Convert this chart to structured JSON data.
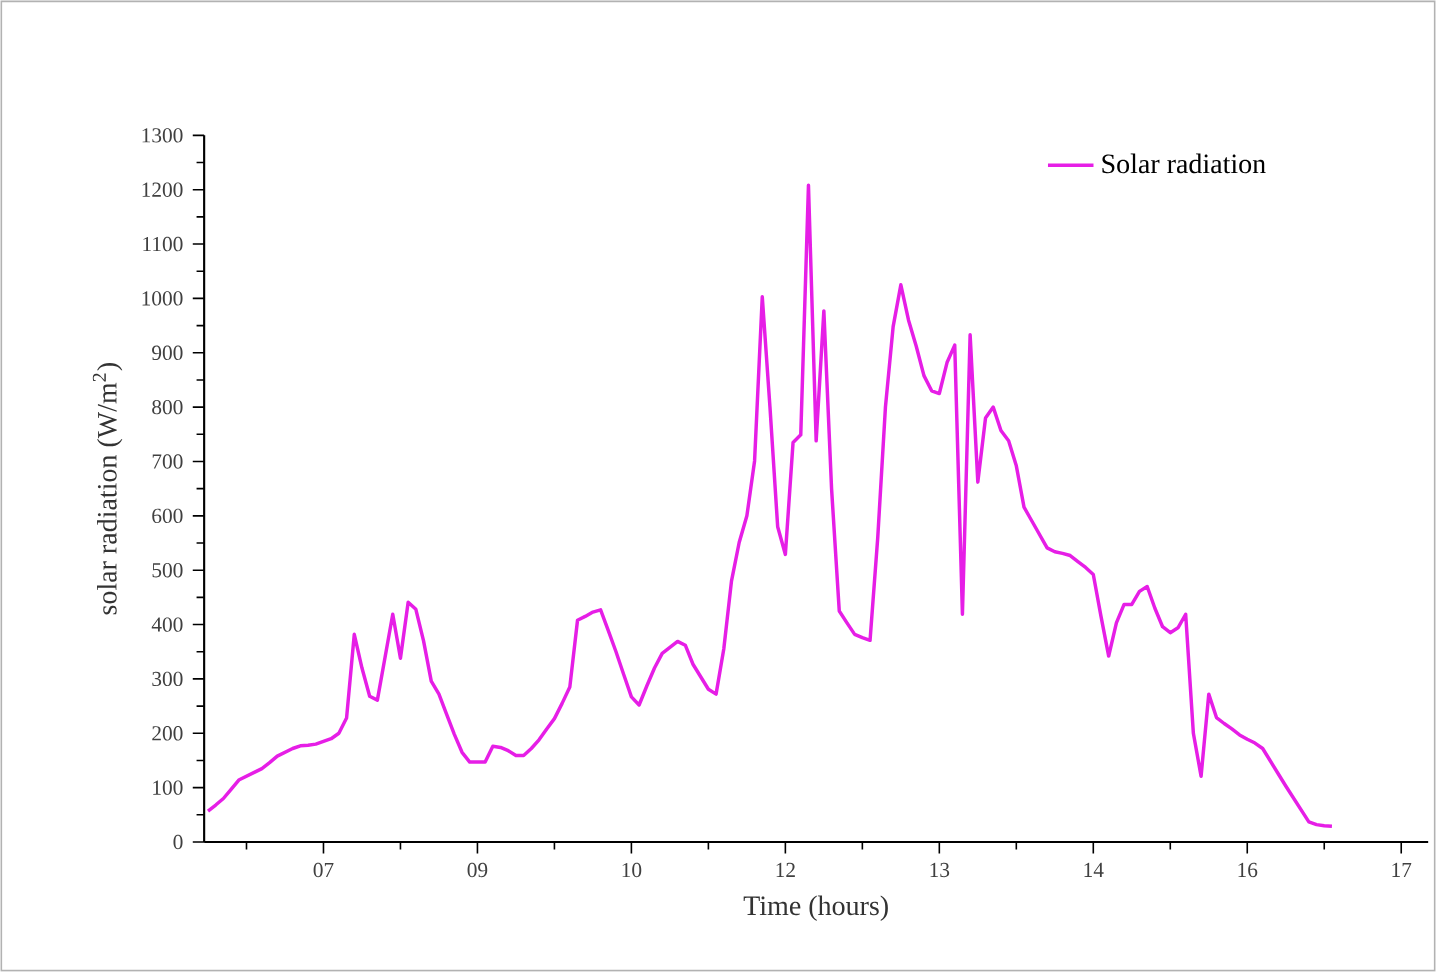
{
  "chart_data": {
    "type": "line",
    "xlabel": "Time (hours)",
    "ylabel": "solar radiation  (W/m$^{2}$)",
    "categories": [
      null,
      null,
      null,
      null,
      null,
      null,
      null,
      null,
      null,
      null,
      null,
      null,
      null,
      null,
      null,
      "07",
      null,
      null,
      null,
      null,
      null,
      null,
      null,
      null,
      null,
      null,
      null,
      null,
      null,
      null,
      null,
      null,
      null,
      null,
      null,
      "09",
      null,
      null,
      null,
      null,
      null,
      null,
      null,
      null,
      null,
      null,
      null,
      null,
      null,
      null,
      null,
      null,
      null,
      null,
      null,
      "10",
      null,
      null,
      null,
      null,
      null,
      null,
      null,
      null,
      null,
      null,
      null,
      null,
      null,
      null,
      null,
      null,
      null,
      null,
      null,
      "12",
      null,
      null,
      null,
      null,
      null,
      null,
      null,
      null,
      null,
      null,
      null,
      null,
      null,
      null,
      null,
      null,
      null,
      null,
      null,
      "13",
      null,
      null,
      null,
      null,
      null,
      null,
      null,
      null,
      null,
      null,
      null,
      null,
      null,
      null,
      null,
      null,
      null,
      null,
      null,
      "14",
      null,
      null,
      null,
      null,
      null,
      null,
      null,
      null,
      null,
      null,
      null,
      null,
      null,
      null,
      null,
      null,
      null,
      null,
      null,
      "16",
      null,
      null,
      null,
      null,
      null,
      null,
      null,
      null,
      null,
      null,
      null,
      null,
      null,
      null,
      null,
      null,
      null,
      null,
      null,
      "17",
      null,
      null,
      null
    ],
    "ylim": [
      0,
      1300
    ],
    "yticks": [
      0,
      100,
      200,
      300,
      400,
      500,
      600,
      700,
      800,
      900,
      1000,
      1100,
      1200,
      1300
    ],
    "grid": false,
    "legend": "top right",
    "marker": "none",
    "line_style": "solid",
    "series": [
      {
        "name": "Solar radiation",
        "color": "#e61ee6",
        "values": [
          57,
          68,
          80,
          97,
          114,
          121,
          128,
          135,
          146,
          158,
          165,
          172,
          177,
          178,
          180,
          185,
          190,
          200,
          228,
          382,
          320,
          268,
          261,
          340,
          419,
          338,
          441,
          428,
          370,
          296,
          272,
          235,
          198,
          165,
          147,
          147,
          147,
          176,
          174,
          168,
          159,
          159,
          172,
          188,
          208,
          227,
          255,
          285,
          408,
          415,
          423,
          427,
          389,
          350,
          308,
          267,
          252,
          287,
          320,
          347,
          358,
          369,
          362,
          327,
          304,
          281,
          272,
          355,
          480,
          551,
          600,
          701,
          1003,
          800,
          580,
          529,
          735,
          749,
          1208,
          738,
          977,
          650,
          425,
          403,
          382,
          376,
          371,
          560,
          800,
          948,
          1025,
          960,
          912,
          858,
          830,
          825,
          882,
          914,
          419,
          933,
          662,
          780,
          800,
          757,
          738,
          692,
          616,
          591,
          566,
          541,
          534,
          531,
          527,
          516,
          505,
          492,
          415,
          342,
          403,
          437,
          437,
          461,
          470,
          430,
          396,
          385,
          394,
          419,
          200,
          121,
          272,
          229,
          218,
          208,
          197,
          189,
          182,
          172,
          149,
          126,
          103,
          81,
          59,
          37,
          32,
          30,
          29,
          null,
          null,
          null,
          null,
          null,
          null,
          null,
          null,
          null,
          null,
          null,
          null
        ]
      }
    ]
  }
}
